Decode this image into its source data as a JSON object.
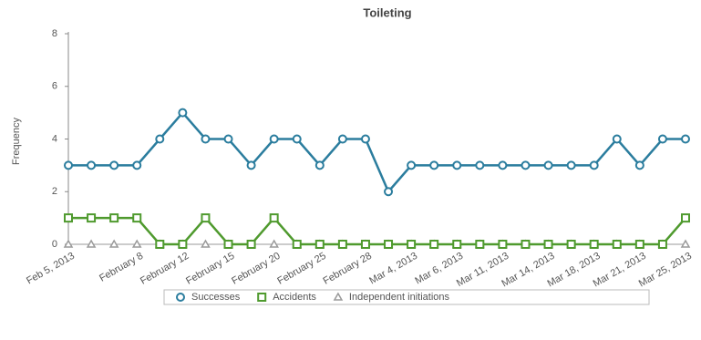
{
  "chart_data": {
    "type": "line",
    "title": "Toileting",
    "y_label": "Frequency",
    "categories": [
      "Feb 5, 2013",
      null,
      null,
      "February 8",
      null,
      "February 12",
      null,
      "February 15",
      null,
      "February 20",
      null,
      "February 25",
      null,
      "February 28",
      null,
      "Mar 4, 2013",
      null,
      "Mar 6, 2013",
      null,
      "Mar 11, 2013",
      null,
      "Mar 14, 2013",
      null,
      "Mar 18, 2013",
      null,
      "Mar 21, 2013",
      null,
      "Mar 25, 2013"
    ],
    "series": [
      {
        "name": "Successes",
        "color": "#2b7d9e",
        "marker": "circle",
        "values": [
          3,
          3,
          3,
          3,
          4,
          5,
          4,
          4,
          3,
          4,
          4,
          3,
          4,
          4,
          2,
          3,
          3,
          3,
          3,
          3,
          3,
          3,
          3,
          3,
          4,
          3,
          4,
          4
        ]
      },
      {
        "name": "Accidents",
        "color": "#4f9a2e",
        "marker": "square",
        "values": [
          1,
          1,
          1,
          1,
          0,
          0,
          1,
          0,
          0,
          1,
          0,
          0,
          0,
          0,
          0,
          0,
          0,
          0,
          0,
          0,
          0,
          0,
          0,
          0,
          0,
          0,
          0,
          1
        ]
      },
      {
        "name": "Independent initiations",
        "color": "#9a9a9a",
        "marker": "triangle",
        "values": [
          0,
          0,
          0,
          0,
          0,
          0,
          0,
          0,
          0,
          0,
          0,
          0,
          0,
          0,
          0,
          0,
          0,
          0,
          0,
          0,
          0,
          0,
          0,
          0,
          0,
          0,
          0,
          0
        ]
      }
    ],
    "ylim": [
      0,
      8
    ],
    "yticks": [
      0,
      2,
      4,
      6,
      8
    ],
    "legend": "bottom"
  }
}
